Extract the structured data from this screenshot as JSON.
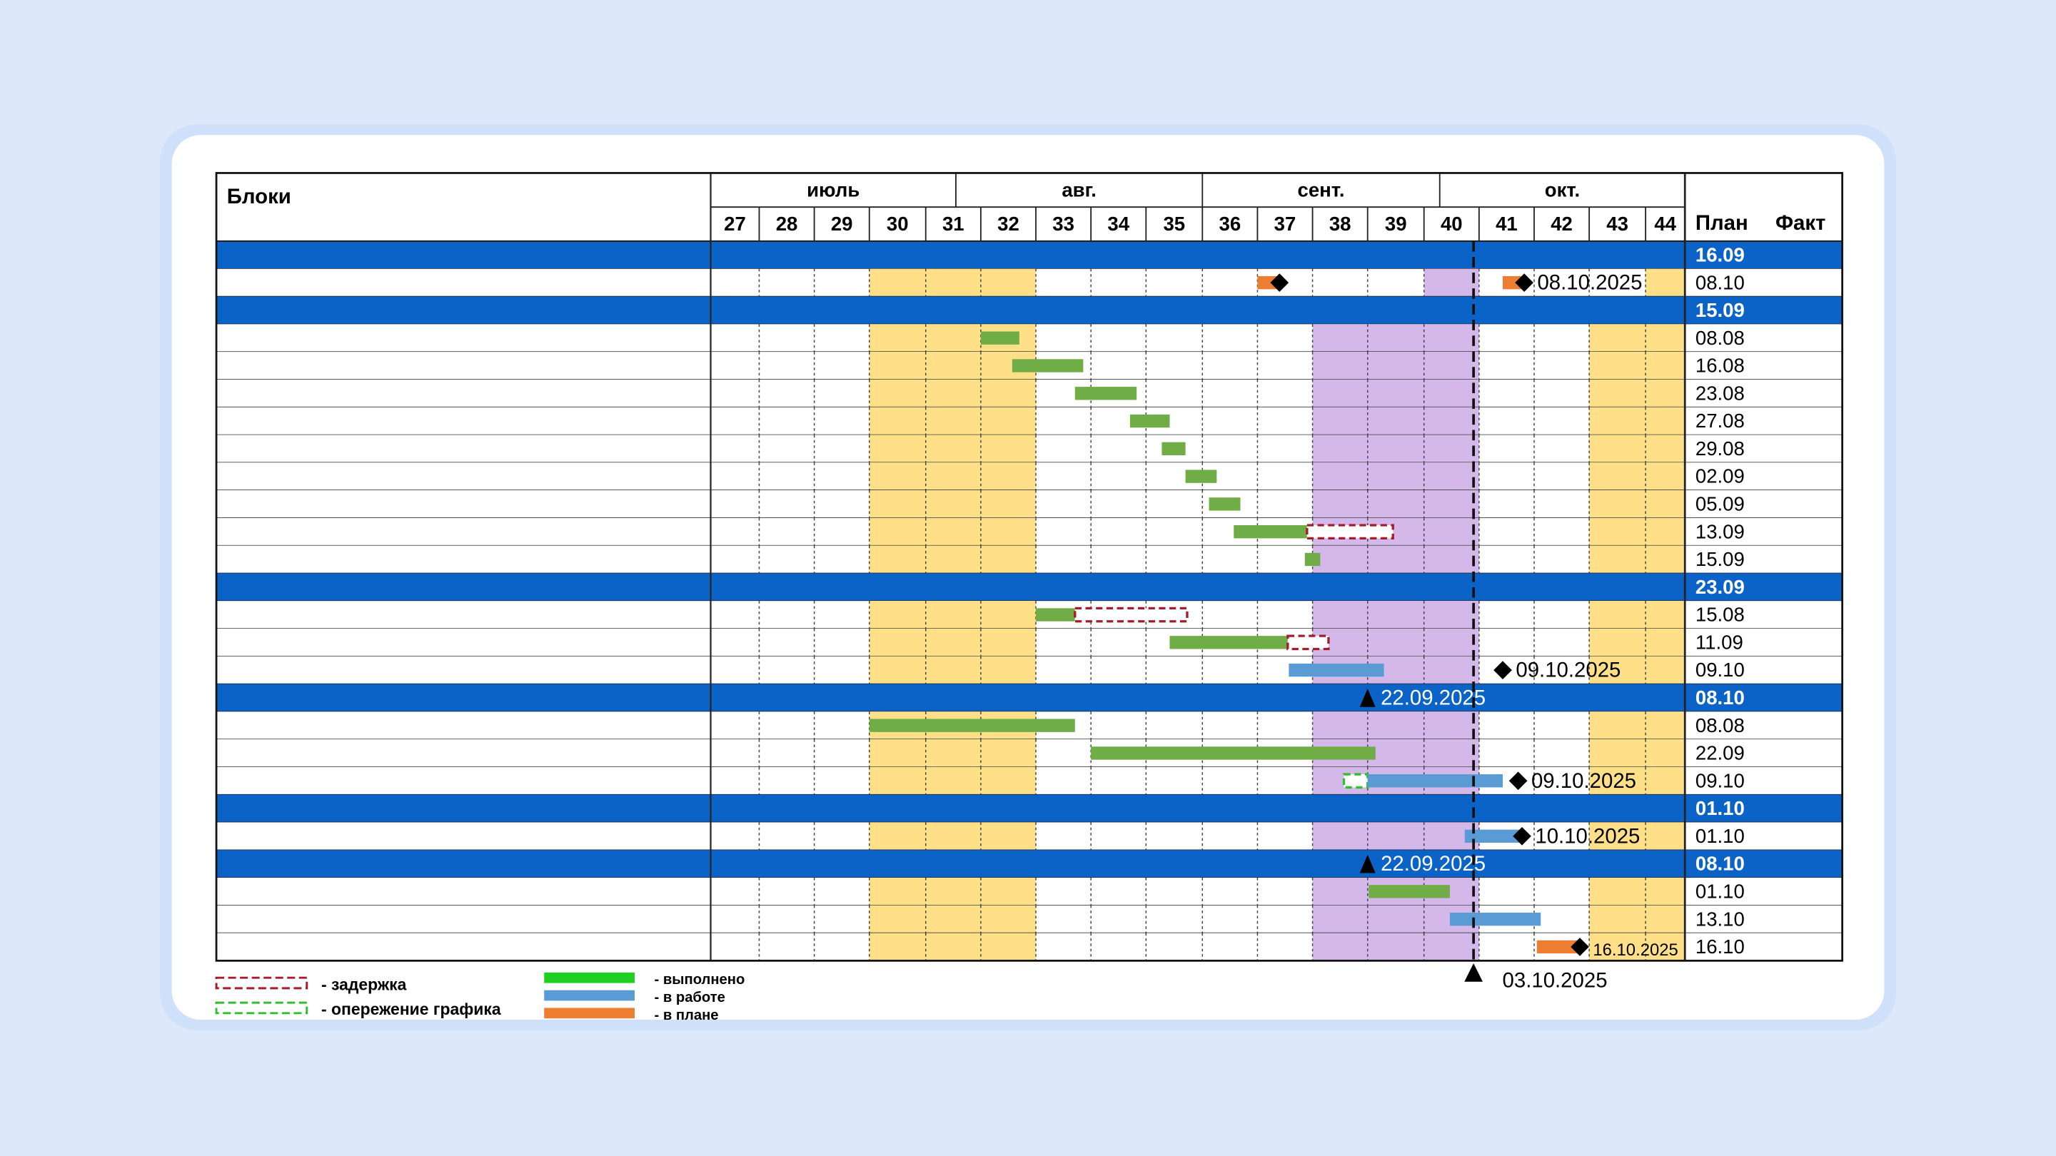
{
  "header": {
    "blocks": "Блоки",
    "plan": "План",
    "fact": "Факт"
  },
  "months": [
    "июль",
    "авг.",
    "сент.",
    "окт."
  ],
  "weeks": [
    27,
    28,
    29,
    30,
    31,
    32,
    33,
    34,
    35,
    36,
    37,
    38,
    39,
    40,
    41,
    42,
    43,
    44
  ],
  "rows": [
    {
      "plan": "16.09",
      "fill": "#0b63c8"
    },
    {
      "plan": "08.10",
      "bars": [
        {
          "start": 37.0,
          "end": 37.4,
          "color": "#ed7d31"
        },
        {
          "start": 41.43,
          "end": 41.8,
          "color": "#ed7d31"
        }
      ],
      "markers": [
        {
          "at": 37.4,
          "shape": "diamond"
        },
        {
          "at": 41.82,
          "shape": "diamond",
          "label": "08.10.2025"
        }
      ]
    },
    {
      "plan": "15.09",
      "fill": "#0b63c8"
    },
    {
      "plan": "08.08",
      "bars": [
        {
          "start": 32.0,
          "end": 32.7,
          "color": "#70ad47"
        }
      ]
    },
    {
      "plan": "16.08",
      "bars": [
        {
          "start": 32.57,
          "end": 33.86,
          "color": "#70ad47"
        }
      ]
    },
    {
      "plan": "23.08",
      "bars": [
        {
          "start": 33.71,
          "end": 34.83,
          "color": "#70ad47"
        }
      ]
    },
    {
      "plan": "27.08",
      "bars": [
        {
          "start": 34.71,
          "end": 35.42,
          "color": "#70ad47"
        }
      ]
    },
    {
      "plan": "29.08",
      "bars": [
        {
          "start": 35.28,
          "end": 35.7,
          "color": "#70ad47"
        }
      ]
    },
    {
      "plan": "02.09",
      "bars": [
        {
          "start": 35.7,
          "end": 36.26,
          "color": "#70ad47"
        }
      ]
    },
    {
      "plan": "05.09",
      "bars": [
        {
          "start": 36.12,
          "end": 36.69,
          "color": "#70ad47"
        }
      ]
    },
    {
      "plan": "13.09",
      "bars": [
        {
          "start": 36.57,
          "end": 37.9,
          "color": "#70ad47"
        },
        {
          "start": 37.9,
          "end": 39.45,
          "color": "#a31d2a",
          "dashed": true
        }
      ]
    },
    {
      "plan": "15.09",
      "bars": [
        {
          "start": 37.86,
          "end": 38.14,
          "color": "#70ad47"
        }
      ]
    },
    {
      "plan": "23.09",
      "fill": "#0b63c8"
    },
    {
      "plan": "15.08",
      "bars": [
        {
          "start": 33.0,
          "end": 33.71,
          "color": "#70ad47"
        },
        {
          "start": 33.71,
          "end": 35.73,
          "color": "#a31d2a",
          "dashed": true
        }
      ]
    },
    {
      "plan": "11.09",
      "bars": [
        {
          "start": 35.42,
          "end": 37.55,
          "color": "#70ad47"
        },
        {
          "start": 37.55,
          "end": 38.29,
          "color": "#a31d2a",
          "dashed": true
        }
      ]
    },
    {
      "plan": "09.10",
      "bars": [
        {
          "start": 37.57,
          "end": 39.29,
          "color": "#5b9bd5"
        }
      ],
      "markers": [
        {
          "at": 41.43,
          "shape": "diamond",
          "label": "09.10.2025"
        }
      ]
    },
    {
      "plan": "08.10",
      "fill": "#0b63c8",
      "markers": [
        {
          "at": 39.0,
          "shape": "triangle",
          "label": "22.09.2025"
        }
      ]
    },
    {
      "plan": "08.08",
      "bars": [
        {
          "start": 30.0,
          "end": 33.71,
          "color": "#70ad47"
        }
      ]
    },
    {
      "plan": "22.09",
      "bars": [
        {
          "start": 34.0,
          "end": 39.14,
          "color": "#70ad47"
        }
      ]
    },
    {
      "plan": "09.10",
      "bars": [
        {
          "start": 38.57,
          "end": 39.0,
          "color": "#2fbf2f",
          "dashed": true
        },
        {
          "start": 39.0,
          "end": 41.43,
          "color": "#5b9bd5"
        }
      ],
      "markers": [
        {
          "at": 41.71,
          "shape": "diamond",
          "label": "09.10.2025"
        }
      ]
    },
    {
      "plan": "01.10",
      "fill": "#0b63c8"
    },
    {
      "plan": "01.10",
      "bars": [
        {
          "start": 40.74,
          "end": 41.76,
          "color": "#5b9bd5"
        }
      ],
      "markers": [
        {
          "at": 41.78,
          "shape": "diamond",
          "label": "10.10.2025"
        }
      ]
    },
    {
      "plan": "08.10",
      "fill": "#0b63c8",
      "markers": [
        {
          "at": 39.0,
          "shape": "triangle",
          "label": "22.09.2025"
        }
      ]
    },
    {
      "plan": "01.10",
      "bars": [
        {
          "start": 39.02,
          "end": 40.47,
          "color": "#70ad47"
        }
      ]
    },
    {
      "plan": "13.10",
      "bars": [
        {
          "start": 40.47,
          "end": 42.12,
          "color": "#5b9bd5"
        }
      ]
    },
    {
      "plan": "16.10",
      "bars": [
        {
          "start": 42.05,
          "end": 42.83,
          "color": "#ed7d31"
        }
      ],
      "markers": [
        {
          "at": 42.83,
          "shape": "diamond",
          "label": "16.10.2025"
        }
      ]
    }
  ],
  "today": {
    "at": 40.9,
    "label": "03.10.2025"
  },
  "legend": [
    {
      "label": "- задержка",
      "color": "#a31d2a",
      "dashed": true
    },
    {
      "label": "- опережение графика",
      "color": "#2fbf2f",
      "dashed": true
    },
    {
      "label": "- выполнено",
      "color": "#1fcf1f"
    },
    {
      "label": "- в работе",
      "color": "#5b9bd5"
    },
    {
      "label": "- в плане",
      "color": "#ed7d31"
    }
  ]
}
